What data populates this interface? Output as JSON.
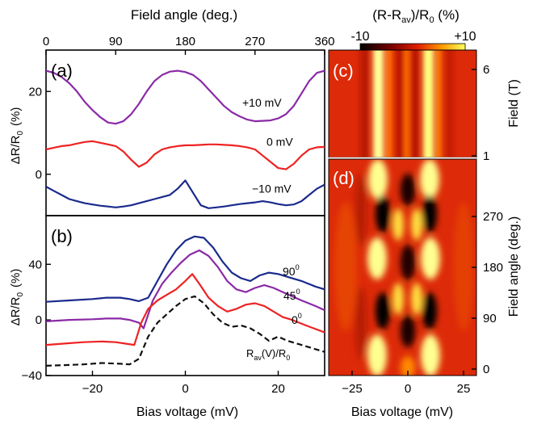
{
  "chart_data": [
    {
      "panel": "a",
      "type": "line",
      "label": "(a)",
      "xlabel": "Field angle  (deg.)",
      "ylabel": "ΔR/R",
      "ylabel_sub": "0",
      "ylabel_unit": "(%)",
      "xlim": [
        0,
        360
      ],
      "ylim": [
        -10,
        30
      ],
      "xticks": [
        0,
        90,
        180,
        270,
        360
      ],
      "yticks": [
        0,
        20
      ],
      "series": [
        {
          "name": "+10 mV",
          "color": "#8a2aa6",
          "x": [
            0,
            10,
            20,
            30,
            40,
            50,
            60,
            70,
            80,
            90,
            100,
            110,
            120,
            130,
            140,
            150,
            160,
            170,
            180,
            190,
            200,
            210,
            220,
            230,
            240,
            250,
            260,
            270,
            280,
            290,
            300,
            310,
            320,
            330,
            340,
            350,
            360
          ],
          "y": [
            25,
            24.5,
            23.5,
            22,
            20,
            17.5,
            15.5,
            13.8,
            12.5,
            12.2,
            12.8,
            14.5,
            17,
            20,
            22.5,
            24,
            24.8,
            25,
            24.7,
            24,
            22.5,
            20.5,
            18.5,
            16.5,
            15,
            14,
            13.2,
            12.8,
            12.9,
            13,
            13.5,
            14.5,
            16.5,
            19.5,
            22.5,
            24.5,
            25
          ]
        },
        {
          "name": "0 mV",
          "color": "#ee2222",
          "x": [
            0,
            10,
            20,
            30,
            40,
            50,
            60,
            70,
            80,
            90,
            100,
            110,
            120,
            130,
            140,
            150,
            160,
            170,
            180,
            190,
            200,
            210,
            220,
            230,
            240,
            250,
            260,
            270,
            280,
            290,
            300,
            310,
            320,
            330,
            340,
            350,
            360
          ],
          "y": [
            6,
            6.4,
            6.8,
            7,
            7.4,
            7.8,
            8,
            7.6,
            7.2,
            6.8,
            5.5,
            3.5,
            1.8,
            2.8,
            4.8,
            6,
            6.5,
            6.8,
            7,
            7,
            7.1,
            7.2,
            7.2,
            7.1,
            7,
            6.8,
            6.5,
            6,
            4.5,
            3,
            1.5,
            1.2,
            2.5,
            4.5,
            6,
            6.5,
            6.6
          ]
        },
        {
          "name": "-10 mV",
          "color": "#1a2a8c",
          "x": [
            0,
            10,
            20,
            30,
            40,
            50,
            60,
            70,
            80,
            90,
            100,
            110,
            120,
            130,
            140,
            150,
            160,
            170,
            180,
            190,
            200,
            210,
            220,
            230,
            240,
            250,
            260,
            270,
            280,
            290,
            300,
            310,
            320,
            330,
            340,
            350,
            360
          ],
          "y": [
            -3,
            -4,
            -5,
            -6,
            -6.5,
            -7,
            -7.3,
            -7.6,
            -7.8,
            -8,
            -7.8,
            -7.5,
            -7,
            -6.5,
            -6,
            -5.5,
            -5,
            -3.5,
            -1.5,
            -4.5,
            -7.5,
            -8.2,
            -8,
            -7.8,
            -7.5,
            -7.2,
            -7,
            -6.8,
            -6.5,
            -6.8,
            -7.2,
            -7.5,
            -7.3,
            -6.5,
            -5,
            -3.5,
            -2.5
          ]
        }
      ]
    },
    {
      "panel": "b",
      "type": "line",
      "label": "(b)",
      "xlabel": "Bias voltage (mV)",
      "ylabel": "ΔR/R",
      "ylabel_sub": "0",
      "ylabel_unit": "(%)",
      "xlim": [
        -30,
        30
      ],
      "ylim": [
        -40,
        75
      ],
      "xticks": [
        -20,
        0,
        20
      ],
      "yticks": [
        -40,
        0,
        40
      ],
      "series": [
        {
          "name": "90",
          "name_sup": "0",
          "color": "#1a2a8c",
          "x": [
            -30,
            -25,
            -20,
            -17,
            -14,
            -12,
            -10,
            -8,
            -6,
            -4,
            -2,
            0,
            2,
            4,
            6,
            8,
            10,
            12,
            14,
            16,
            18,
            20,
            22,
            25,
            28,
            30
          ],
          "y": [
            13,
            14,
            15,
            16,
            16,
            15,
            13.5,
            16,
            28,
            40,
            50,
            57,
            60,
            59,
            52,
            42,
            34,
            30,
            28,
            32,
            34,
            33,
            31,
            28,
            24,
            22
          ]
        },
        {
          "name": "45",
          "name_sup": "0",
          "color": "#8a2aa6",
          "x": [
            -30,
            -25,
            -20,
            -17,
            -14,
            -12,
            -10,
            -9,
            -7,
            -5,
            -3,
            -1,
            1,
            3,
            5,
            7,
            9,
            11,
            13,
            15,
            17,
            19,
            21,
            23,
            25,
            28,
            30
          ],
          "y": [
            -1,
            0,
            0.5,
            1,
            1,
            0,
            -2,
            -6,
            14,
            26,
            34,
            41,
            47,
            50,
            46,
            38,
            28,
            22,
            20,
            23,
            25,
            23,
            20,
            17,
            14,
            10,
            7
          ]
        },
        {
          "name": "0",
          "name_sup": "0",
          "color": "#ee2222",
          "x": [
            -30,
            -26,
            -22,
            -18,
            -15,
            -13,
            -11,
            -9.5,
            -8,
            -6,
            -4,
            -2,
            0,
            1.5,
            3,
            5,
            7,
            9,
            11,
            13,
            15,
            17,
            19,
            21,
            23,
            26,
            30
          ],
          "y": [
            -18,
            -17,
            -16,
            -15.5,
            -16,
            -17,
            -18,
            -2,
            8,
            14,
            18,
            22,
            28,
            33,
            26,
            16,
            10,
            6,
            8,
            11,
            12,
            10,
            6,
            2,
            0,
            -4,
            -9
          ]
        },
        {
          "name": "R",
          "name_sub": "av",
          "name_suffix": "(V)/R",
          "name_sub2": "0",
          "color": "#111111",
          "dashed": true,
          "x": [
            -30,
            -26,
            -22,
            -18,
            -14,
            -12,
            -10,
            -8,
            -6,
            -4,
            -2,
            0,
            2,
            4,
            6,
            8,
            10,
            12,
            14,
            16,
            18,
            20,
            22,
            25,
            28,
            30
          ],
          "y": [
            -33,
            -32.5,
            -32,
            -31,
            -31.5,
            -32,
            -28,
            -12,
            -2,
            4,
            10,
            15,
            17,
            12,
            4,
            -2,
            -5,
            -4,
            -6,
            -10,
            -15,
            -12,
            -15,
            -18,
            -21,
            -23
          ]
        }
      ]
    },
    {
      "panel": "c",
      "type": "heatmap",
      "label": "(c)",
      "ylabel": "Field (T)",
      "yticks": [
        1,
        6
      ],
      "colorbar_label": "(R-R",
      "colorbar_sub": "av",
      "colorbar_label2": ")/R",
      "colorbar_sub2": "0",
      "colorbar_unit": " (%)",
      "colorbar_range": [
        -10,
        10
      ],
      "colorbar_ticks": [
        "-10",
        "+10"
      ]
    },
    {
      "panel": "d",
      "type": "heatmap",
      "label": "(d)",
      "xlabel": "Bias voltage (mV)",
      "ylabel": "Field angle  (deg.)",
      "xticks": [
        -25,
        0,
        25
      ],
      "yticks": [
        0,
        90,
        180,
        270
      ]
    }
  ]
}
